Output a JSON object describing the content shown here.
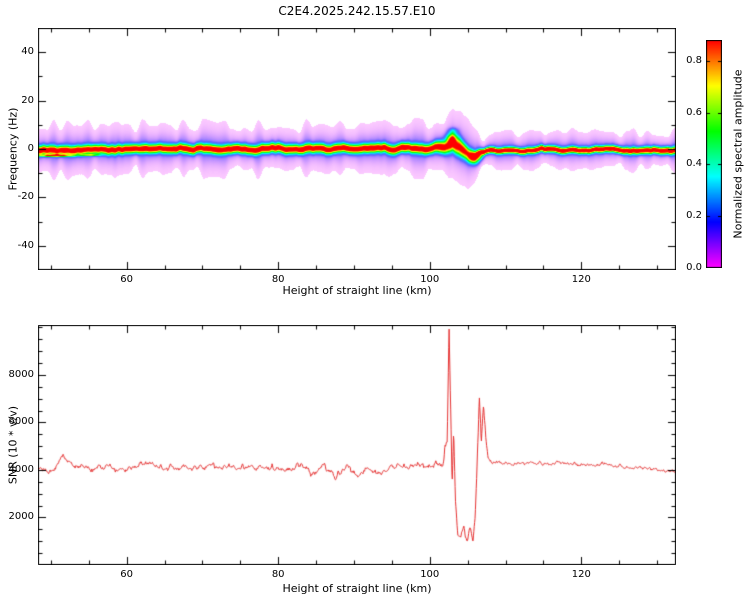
{
  "figure": {
    "title": "C2E4.2025.242.15.57.E10",
    "background": "#ffffff"
  },
  "chart_data": [
    {
      "type": "heatmap",
      "panel": "spectrogram",
      "xlabel": "Height of straight line (km)",
      "ylabel": "Frequency (Hz)",
      "xlim": [
        48.3,
        132.5
      ],
      "ylim": [
        -50,
        50
      ],
      "xticks": [
        60,
        80,
        100,
        120
      ],
      "xtick_labels": [
        "60",
        "80",
        "100",
        "120"
      ],
      "xminor_step": 5,
      "yticks": [
        -40,
        -20,
        0,
        20,
        40
      ],
      "ytick_labels": [
        "-40",
        "-20",
        "0",
        "20",
        "40"
      ],
      "yminor_step": 10,
      "grid": false,
      "colorbar": {
        "label": "Normalized spectral amplitude",
        "ticks": [
          0,
          0.2,
          0.4,
          0.6,
          0.8
        ],
        "tick_labels": [
          "0.0",
          "0.2",
          "0.4",
          "0.6",
          "0.8"
        ],
        "range": [
          0,
          0.88
        ],
        "colormap": "rainbow"
      },
      "band": {
        "description": "narrow high-amplitude echo band near 0 Hz across all heights; broadened, oscillating and briefly disrupted near 102-107 km",
        "halo_amp": 0.14,
        "outer_amp": 0.035,
        "profile": [
          {
            "x": 48.3,
            "center": -0.4,
            "width": 1.25,
            "amp": 0.86,
            "halo": 3.6
          },
          {
            "x": 60,
            "center": -0.1,
            "width": 1.2,
            "amp": 0.86,
            "halo": 3.3
          },
          {
            "x": 70,
            "center": 0.0,
            "width": 1.2,
            "amp": 0.86,
            "halo": 3.4
          },
          {
            "x": 80,
            "center": 0.1,
            "width": 1.25,
            "amp": 0.86,
            "halo": 3.3
          },
          {
            "x": 90,
            "center": 0.0,
            "width": 1.2,
            "amp": 0.86,
            "halo": 3.2
          },
          {
            "x": 100,
            "center": 0.2,
            "width": 1.3,
            "amp": 0.86,
            "halo": 3.5
          },
          {
            "x": 102,
            "center": 0.8,
            "width": 1.7,
            "amp": 0.84,
            "halo": 4.2
          },
          {
            "x": 103,
            "center": 2.2,
            "width": 2.1,
            "amp": 0.8,
            "halo": 5.0
          },
          {
            "x": 104,
            "center": 0.5,
            "width": 2.3,
            "amp": 0.78,
            "halo": 5.2
          },
          {
            "x": 105,
            "center": -1.6,
            "width": 1.8,
            "amp": 0.76,
            "halo": 4.6
          },
          {
            "x": 106,
            "center": -2.8,
            "width": 1.2,
            "amp": 0.8,
            "halo": 3.2
          },
          {
            "x": 106.8,
            "center": -1.6,
            "width": 0.9,
            "amp": 0.87,
            "halo": 2.2
          },
          {
            "x": 108,
            "center": -0.5,
            "width": 0.85,
            "amp": 0.88,
            "halo": 2.2
          },
          {
            "x": 115,
            "center": -0.3,
            "width": 0.9,
            "amp": 0.88,
            "halo": 2.4
          },
          {
            "x": 124,
            "center": -0.3,
            "width": 0.9,
            "amp": 0.88,
            "halo": 2.4
          },
          {
            "x": 132.5,
            "center": -0.4,
            "width": 1.0,
            "amp": 0.87,
            "halo": 2.6
          }
        ],
        "blobs": [
          {
            "x": 102.9,
            "y": 4.6,
            "sx": 0.55,
            "sy": 1.6,
            "amp": 0.42
          },
          {
            "x": 103.1,
            "y": 7.6,
            "sx": 0.45,
            "sy": 0.9,
            "amp": 0.16
          },
          {
            "x": 105.9,
            "y": -4.4,
            "sx": 0.5,
            "sy": 1.4,
            "amp": 0.48
          },
          {
            "x": 106.6,
            "y": -3.2,
            "sx": 0.35,
            "sy": 1.0,
            "amp": 0.3
          },
          {
            "x": 50.6,
            "y": -2.7,
            "sx": 1.5,
            "sy": 0.35,
            "amp": 0.7
          },
          {
            "x": 55.2,
            "y": -2.5,
            "sx": 0.9,
            "sy": 0.3,
            "amp": 0.45
          }
        ]
      }
    },
    {
      "type": "line",
      "panel": "snr",
      "xlabel": "Height of straight line (km)",
      "ylabel": "SNR (10 * v/v)",
      "xlim": [
        48.3,
        132.5
      ],
      "ylim": [
        0,
        10100
      ],
      "xticks": [
        60,
        80,
        100,
        120
      ],
      "xtick_labels": [
        "60",
        "80",
        "100",
        "120"
      ],
      "xminor_step": 5,
      "yticks": [
        2000,
        4000,
        6000,
        8000
      ],
      "ytick_labels": [
        "2000",
        "4000",
        "6000",
        "8000"
      ],
      "yminor_step": 500,
      "line_color": "#e63232",
      "keypoints": [
        [
          48.3,
          4050
        ],
        [
          49.5,
          3950
        ],
        [
          50.5,
          4100
        ],
        [
          51.6,
          4550
        ],
        [
          52.4,
          4300
        ],
        [
          53.5,
          4150
        ],
        [
          55,
          4050
        ],
        [
          57,
          4150
        ],
        [
          59,
          4050
        ],
        [
          61,
          4150
        ],
        [
          63,
          4250
        ],
        [
          65,
          4050
        ],
        [
          67,
          4150
        ],
        [
          69,
          4050
        ],
        [
          71,
          4200
        ],
        [
          73,
          4100
        ],
        [
          75,
          4150
        ],
        [
          77,
          4050
        ],
        [
          79,
          4100
        ],
        [
          81,
          3950
        ],
        [
          83,
          4300
        ],
        [
          84.5,
          3850
        ],
        [
          86,
          4200
        ],
        [
          87.5,
          3700
        ],
        [
          89,
          4100
        ],
        [
          90.5,
          3750
        ],
        [
          92,
          4050
        ],
        [
          93.5,
          3850
        ],
        [
          95,
          4150
        ],
        [
          96.5,
          4050
        ],
        [
          98,
          4150
        ],
        [
          99.5,
          4100
        ],
        [
          100.8,
          4250
        ],
        [
          101.8,
          4350
        ],
        [
          102.3,
          5400
        ],
        [
          102.55,
          9900
        ],
        [
          102.75,
          6500
        ],
        [
          102.95,
          3200
        ],
        [
          103.15,
          5600
        ],
        [
          103.4,
          2600
        ],
        [
          103.7,
          1350
        ],
        [
          104.1,
          1050
        ],
        [
          104.5,
          1500
        ],
        [
          104.9,
          1000
        ],
        [
          105.3,
          1450
        ],
        [
          105.7,
          1050
        ],
        [
          106.0,
          1900
        ],
        [
          106.3,
          4700
        ],
        [
          106.55,
          7100
        ],
        [
          106.8,
          5200
        ],
        [
          107.1,
          6900
        ],
        [
          107.4,
          5300
        ],
        [
          107.7,
          4600
        ],
        [
          108.2,
          4350
        ],
        [
          109.5,
          4300
        ],
        [
          111,
          4250
        ],
        [
          113,
          4350
        ],
        [
          115,
          4250
        ],
        [
          117,
          4300
        ],
        [
          119,
          4250
        ],
        [
          121,
          4200
        ],
        [
          123,
          4250
        ],
        [
          125,
          4150
        ],
        [
          127,
          4100
        ],
        [
          129,
          4050
        ],
        [
          131,
          4000
        ],
        [
          132.5,
          3950
        ]
      ],
      "noise_regions": [
        {
          "x0": 48.3,
          "x1": 101.8,
          "amp": 190
        },
        {
          "x0": 101.8,
          "x1": 103.2,
          "amp": 380
        },
        {
          "x0": 103.2,
          "x1": 106.0,
          "amp": 260
        },
        {
          "x0": 106.0,
          "x1": 108.0,
          "amp": 380
        },
        {
          "x0": 108.0,
          "x1": 132.5,
          "amp": 115
        }
      ]
    }
  ]
}
